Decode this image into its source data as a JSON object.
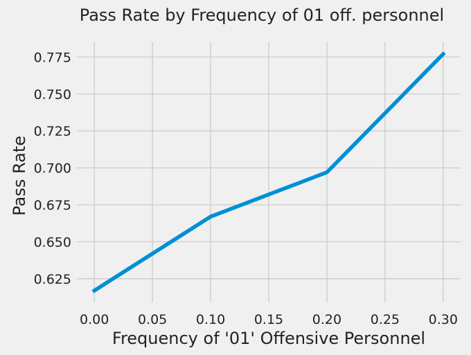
{
  "chart_data": {
    "type": "line",
    "title": "Pass Rate by Frequency of 01 off. personnel",
    "xlabel": "Frequency of '01' Offensive Personnel",
    "ylabel": "Pass Rate",
    "x": [
      0.0,
      0.1,
      0.2,
      0.3
    ],
    "series": [
      {
        "values": [
          0.617,
          0.667,
          0.697,
          0.777
        ],
        "color": "#008fd5"
      }
    ],
    "xlim": [
      -0.015,
      0.315
    ],
    "ylim": [
      0.609,
      0.785
    ],
    "xticks": [
      "0.00",
      "0.05",
      "0.10",
      "0.15",
      "0.20",
      "0.25",
      "0.30"
    ],
    "yticks": [
      "0.625",
      "0.650",
      "0.675",
      "0.700",
      "0.725",
      "0.750",
      "0.775"
    ],
    "grid": true,
    "style": "fivethirtyeight"
  }
}
